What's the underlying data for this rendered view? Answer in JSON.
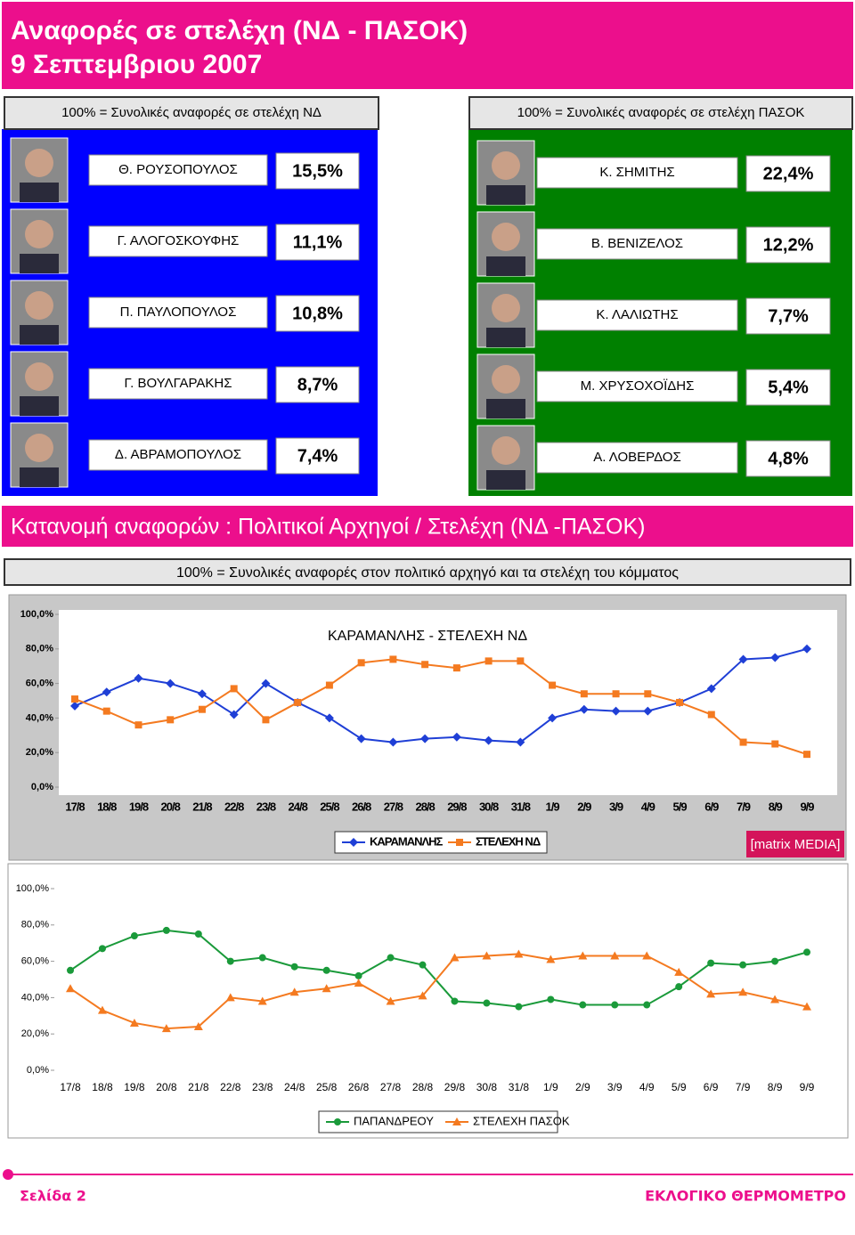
{
  "header": {
    "title_line1": "Αναφορές σε στελέχη (ΝΔ - ΠΑΣΟΚ)",
    "title_line2": "9 Σεπτεμβριου 2007"
  },
  "panels": [
    {
      "label": "100% = Συνολικές αναφορές σε στελέχη ΝΔ",
      "color": "#0000ff",
      "rows": [
        {
          "name": "Θ. ΡΟΥΣΟΠΟΥΛΟΣ",
          "value": "15,5%"
        },
        {
          "name": "Γ. ΑΛΟΓΟΣΚΟΥΦΗΣ",
          "value": "11,1%"
        },
        {
          "name": "Π. ΠΑΥΛΟΠΟΥΛΟΣ",
          "value": "10,8%"
        },
        {
          "name": "Γ. ΒΟΥΛΓΑΡΑΚΗΣ",
          "value": "8,7%"
        },
        {
          "name": "Δ. ΑΒΡΑΜΟΠΟΥΛΟΣ",
          "value": "7,4%"
        }
      ]
    },
    {
      "label": "100% = Συνολικές αναφορές σε στελέχη ΠΑΣΟΚ",
      "color": "#008000",
      "rows": [
        {
          "name": "Κ. ΣΗΜΙΤΗΣ",
          "value": "22,4%"
        },
        {
          "name": "Β. ΒΕΝΙΖΕΛΟΣ",
          "value": "12,2%"
        },
        {
          "name": "Κ. ΛΑΛΙΩΤΗΣ",
          "value": "7,7%"
        },
        {
          "name": "Μ. ΧΡΥΣΟΧΟΪΔΗΣ",
          "value": "5,4%"
        },
        {
          "name": "Α. ΛΟΒΕΡΔΟΣ",
          "value": "4,8%"
        }
      ]
    }
  ],
  "section": {
    "title": "Κατανομή αναφορών : Πολιτικοί Αρχηγοί / Στελέχη (ΝΔ -ΠΑΣΟΚ)",
    "subtitle": "100% = Συνολικές αναφορές στον πολιτικό αρχηγό  και τα στελέχη του κόμματος"
  },
  "chart_data": [
    {
      "type": "line",
      "title": "ΚΑΡΑΜΑΝΛΗΣ - ΣΤΕΛΕΧΗ ΝΔ",
      "categories": [
        "17/8",
        "18/8",
        "19/8",
        "20/8",
        "21/8",
        "22/8",
        "23/8",
        "24/8",
        "25/8",
        "26/8",
        "27/8",
        "28/8",
        "29/8",
        "30/8",
        "31/8",
        "1/9",
        "2/9",
        "3/9",
        "4/9",
        "5/9",
        "6/9",
        "7/9",
        "8/9",
        "9/9"
      ],
      "series": [
        {
          "name": "ΚΑΡΑΜΑΝΛΗΣ",
          "color": "#1f3fd6",
          "marker": "diamond",
          "values": [
            47,
            55,
            63,
            60,
            54,
            42,
            60,
            49,
            40,
            28,
            26,
            28,
            29,
            27,
            26,
            40,
            45,
            44,
            44,
            49,
            57,
            74,
            75,
            80
          ]
        },
        {
          "name": "ΣΤΕΛΕΧΗ ΝΔ",
          "color": "#f47a20",
          "marker": "square",
          "values": [
            51,
            44,
            36,
            39,
            45,
            57,
            39,
            49,
            59,
            72,
            74,
            71,
            69,
            73,
            73,
            59,
            54,
            54,
            54,
            49,
            42,
            26,
            25,
            19
          ]
        }
      ],
      "ylim": [
        0,
        100
      ],
      "yticks": [
        {
          "value": 0,
          "label": "0,0%"
        },
        {
          "value": 20,
          "label": "20,0%"
        },
        {
          "value": 40,
          "label": "40,0%"
        },
        {
          "value": 60,
          "label": "60,0%"
        },
        {
          "value": 80,
          "label": "80,0%"
        },
        {
          "value": 100,
          "label": "100,0%"
        }
      ],
      "grid": false
    },
    {
      "type": "line",
      "categories": [
        "17/8",
        "18/8",
        "19/8",
        "20/8",
        "21/8",
        "22/8",
        "23/8",
        "24/8",
        "25/8",
        "26/8",
        "27/8",
        "28/8",
        "29/8",
        "30/8",
        "31/8",
        "1/9",
        "2/9",
        "3/9",
        "4/9",
        "5/9",
        "6/9",
        "7/9",
        "8/9",
        "9/9"
      ],
      "series": [
        {
          "name": "ΠΑΠΑΝΔΡΕΟΥ",
          "color": "#1a9a3a",
          "marker": "circle",
          "values": [
            55,
            67,
            74,
            77,
            75,
            60,
            62,
            57,
            55,
            52,
            62,
            58,
            38,
            37,
            35,
            39,
            36,
            36,
            36,
            46,
            59,
            58,
            60,
            65
          ]
        },
        {
          "name": "ΣΤΕΛΕΧΗ ΠΑΣΟΚ",
          "color": "#f47a20",
          "marker": "triangle",
          "values": [
            45,
            33,
            26,
            23,
            24,
            40,
            38,
            43,
            45,
            48,
            38,
            41,
            62,
            63,
            64,
            61,
            63,
            63,
            63,
            54,
            42,
            43,
            39,
            35
          ]
        }
      ],
      "ylim": [
        0,
        100
      ],
      "yticks": [
        {
          "value": 0,
          "label": "0,0%"
        },
        {
          "value": 20,
          "label": "20,0%"
        },
        {
          "value": 40,
          "label": "40,0%"
        },
        {
          "value": 60,
          "label": "60,0%"
        },
        {
          "value": 80,
          "label": "80,0%"
        },
        {
          "value": 100,
          "label": "100,0%"
        }
      ],
      "grid": false
    }
  ],
  "logo": "[matrix MEDIA]",
  "footer": {
    "page": "Σελίδα 2",
    "brand": "ΕΚΛΟΓΙΚΟ ΘΕΡΜΟΜΕΤΡΟ"
  }
}
